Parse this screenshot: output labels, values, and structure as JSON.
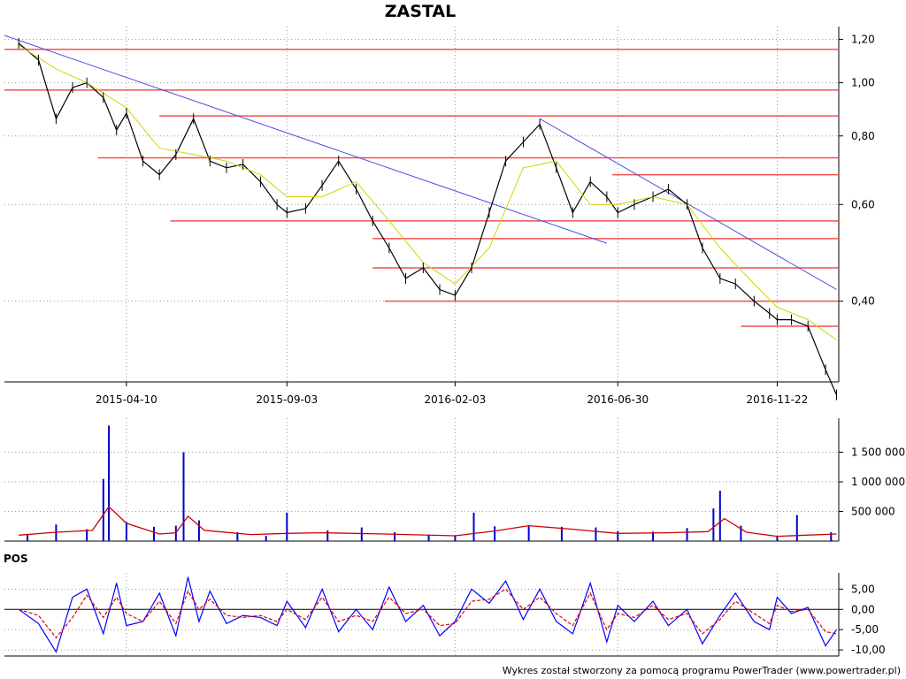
{
  "chart_data": [
    {
      "panel": "price",
      "type": "line",
      "title": "ZASTAL",
      "xlabel": "",
      "ylabel": "",
      "x_tick_labels": [
        "2015-04-10",
        "2015-09-03",
        "2016-02-03",
        "2016-06-30",
        "2016-11-22"
      ],
      "y_tick_labels": [
        "1,20",
        "1,00",
        "0,80",
        "0,60",
        "0,40"
      ],
      "y_ticks": [
        1.2,
        1.0,
        0.8,
        0.6,
        0.4
      ],
      "y_scale": "log",
      "ylim": [
        0.285,
        1.22
      ],
      "grid": true,
      "series": [
        {
          "role": "close",
          "color": "#000000",
          "x": [
            "2015-01-02",
            "2015-01-20",
            "2015-02-05",
            "2015-02-20",
            "2015-03-05",
            "2015-03-20",
            "2015-04-01",
            "2015-04-10",
            "2015-04-25",
            "2015-05-10",
            "2015-05-25",
            "2015-06-10",
            "2015-06-25",
            "2015-07-10",
            "2015-07-25",
            "2015-08-10",
            "2015-08-25",
            "2015-09-03",
            "2015-09-20",
            "2015-10-05",
            "2015-10-20",
            "2015-11-05",
            "2015-11-20",
            "2015-12-05",
            "2015-12-20",
            "2016-01-05",
            "2016-01-20",
            "2016-02-03",
            "2016-02-18",
            "2016-03-05",
            "2016-03-20",
            "2016-04-05",
            "2016-04-20",
            "2016-05-05",
            "2016-05-20",
            "2016-06-05",
            "2016-06-20",
            "2016-06-30",
            "2016-07-15",
            "2016-08-01",
            "2016-08-15",
            "2016-09-01",
            "2016-09-15",
            "2016-10-01",
            "2016-10-15",
            "2016-11-01",
            "2016-11-15",
            "2016-11-22",
            "2016-12-05",
            "2016-12-20",
            "2017-01-05",
            "2017-01-15"
          ],
          "values": [
            1.18,
            1.1,
            0.86,
            0.98,
            1.0,
            0.94,
            0.82,
            0.88,
            0.72,
            0.68,
            0.74,
            0.86,
            0.72,
            0.7,
            0.71,
            0.66,
            0.6,
            0.58,
            0.59,
            0.65,
            0.72,
            0.64,
            0.56,
            0.5,
            0.44,
            0.46,
            0.42,
            0.41,
            0.46,
            0.58,
            0.72,
            0.78,
            0.84,
            0.7,
            0.58,
            0.66,
            0.62,
            0.58,
            0.6,
            0.62,
            0.64,
            0.6,
            0.5,
            0.44,
            0.43,
            0.4,
            0.38,
            0.37,
            0.37,
            0.36,
            0.3,
            0.27
          ]
        },
        {
          "role": "moving-average",
          "color": "#d4d400",
          "x": [
            "2015-01-02",
            "2015-02-05",
            "2015-03-05",
            "2015-04-10",
            "2015-05-10",
            "2015-06-10",
            "2015-07-10",
            "2015-08-10",
            "2015-09-03",
            "2015-10-05",
            "2015-11-05",
            "2015-12-05",
            "2016-01-05",
            "2016-02-03",
            "2016-03-05",
            "2016-04-05",
            "2016-05-05",
            "2016-06-05",
            "2016-06-30",
            "2016-08-01",
            "2016-09-01",
            "2016-10-01",
            "2016-11-01",
            "2016-11-22",
            "2016-12-20",
            "2017-01-15"
          ],
          "values": [
            1.17,
            1.06,
            1.0,
            0.9,
            0.76,
            0.74,
            0.72,
            0.68,
            0.62,
            0.62,
            0.66,
            0.56,
            0.47,
            0.43,
            0.5,
            0.7,
            0.72,
            0.6,
            0.6,
            0.62,
            0.6,
            0.5,
            0.43,
            0.39,
            0.37,
            0.34
          ]
        }
      ],
      "support_resistance_levels": [
        1.15,
        0.97,
        0.87,
        0.73,
        0.56,
        0.52,
        0.46,
        0.4,
        0.36,
        0.68
      ],
      "trendlines": [
        {
          "from": [
            "2014-12-20",
            1.22
          ],
          "to": [
            "2016-06-20",
            0.51
          ]
        },
        {
          "from": [
            "2016-04-20",
            0.86
          ],
          "to": [
            "2017-01-15",
            0.42
          ]
        }
      ]
    },
    {
      "panel": "volume",
      "type": "bar",
      "y_tick_labels": [
        "1 500 000",
        "1 000 000",
        "500 000"
      ],
      "y_ticks": [
        1500000,
        1000000,
        500000
      ],
      "ylim": [
        0,
        2000000
      ],
      "grid": true,
      "series": [
        {
          "role": "volume",
          "color": "#0000cc",
          "x": [
            "2015-01-10",
            "2015-02-05",
            "2015-03-05",
            "2015-03-20",
            "2015-03-25",
            "2015-04-10",
            "2015-05-05",
            "2015-05-25",
            "2015-06-01",
            "2015-06-15",
            "2015-07-20",
            "2015-08-15",
            "2015-09-03",
            "2015-10-10",
            "2015-11-10",
            "2015-12-10",
            "2016-01-10",
            "2016-02-03",
            "2016-02-20",
            "2016-03-10",
            "2016-04-10",
            "2016-05-10",
            "2016-06-10",
            "2016-06-30",
            "2016-08-01",
            "2016-09-01",
            "2016-09-25",
            "2016-10-01",
            "2016-10-20",
            "2016-11-22",
            "2016-12-10",
            "2017-01-10"
          ],
          "values": [
            120000,
            280000,
            200000,
            1050000,
            1950000,
            320000,
            240000,
            260000,
            1500000,
            350000,
            150000,
            90000,
            480000,
            180000,
            230000,
            150000,
            110000,
            90000,
            480000,
            250000,
            260000,
            240000,
            230000,
            170000,
            160000,
            220000,
            550000,
            850000,
            260000,
            80000,
            440000,
            150000
          ]
        },
        {
          "role": "volume-average",
          "color": "#cc0000",
          "x": [
            "2015-01-02",
            "2015-02-05",
            "2015-03-10",
            "2015-03-25",
            "2015-04-10",
            "2015-05-10",
            "2015-05-25",
            "2015-06-05",
            "2015-06-20",
            "2015-08-01",
            "2015-09-03",
            "2015-10-05",
            "2015-12-01",
            "2016-02-03",
            "2016-03-10",
            "2016-04-10",
            "2016-05-20",
            "2016-06-30",
            "2016-08-15",
            "2016-09-20",
            "2016-10-05",
            "2016-10-25",
            "2016-11-22",
            "2017-01-15"
          ],
          "values": [
            100000,
            150000,
            180000,
            580000,
            300000,
            120000,
            140000,
            420000,
            180000,
            110000,
            130000,
            140000,
            120000,
            90000,
            170000,
            260000,
            200000,
            130000,
            140000,
            160000,
            380000,
            150000,
            80000,
            120000
          ]
        }
      ]
    },
    {
      "panel": "oscillator",
      "type": "line",
      "label": "POS",
      "y_tick_labels": [
        "5,00",
        "0,00",
        "-5,00",
        "-10,00"
      ],
      "y_ticks": [
        5.0,
        0.0,
        -5.0,
        -10.0
      ],
      "ylim": [
        -11.5,
        9.0
      ],
      "grid": true,
      "zero_line": true,
      "series": [
        {
          "role": "oscillator",
          "color": "#0000ff",
          "x": [
            "2015-01-02",
            "2015-01-20",
            "2015-02-05",
            "2015-02-20",
            "2015-03-05",
            "2015-03-20",
            "2015-04-01",
            "2015-04-10",
            "2015-04-25",
            "2015-05-10",
            "2015-05-25",
            "2015-06-05",
            "2015-06-15",
            "2015-06-25",
            "2015-07-10",
            "2015-07-25",
            "2015-08-10",
            "2015-08-25",
            "2015-09-03",
            "2015-09-20",
            "2015-10-05",
            "2015-10-20",
            "2015-11-05",
            "2015-11-20",
            "2015-12-05",
            "2015-12-20",
            "2016-01-05",
            "2016-01-20",
            "2016-02-03",
            "2016-02-18",
            "2016-03-05",
            "2016-03-20",
            "2016-04-05",
            "2016-04-20",
            "2016-05-05",
            "2016-05-20",
            "2016-06-05",
            "2016-06-20",
            "2016-06-30",
            "2016-07-15",
            "2016-08-01",
            "2016-08-15",
            "2016-09-01",
            "2016-09-15",
            "2016-10-01",
            "2016-10-15",
            "2016-11-01",
            "2016-11-15",
            "2016-11-22",
            "2016-12-05",
            "2016-12-20",
            "2017-01-05",
            "2017-01-15"
          ],
          "values": [
            0.0,
            -3.5,
            -10.5,
            3.0,
            5.0,
            -6.0,
            6.5,
            -4.0,
            -3.0,
            4.0,
            -6.5,
            8.0,
            -3.0,
            4.5,
            -3.5,
            -1.5,
            -2.0,
            -4.0,
            2.0,
            -4.5,
            5.0,
            -5.5,
            0.0,
            -5.0,
            5.5,
            -3.0,
            1.0,
            -6.5,
            -3.0,
            5.0,
            1.5,
            7.0,
            -2.5,
            5.0,
            -3.0,
            -6.0,
            6.5,
            -8.0,
            1.0,
            -3.0,
            2.0,
            -4.0,
            0.0,
            -8.5,
            -1.5,
            4.0,
            -3.0,
            -5.0,
            3.0,
            -1.0,
            0.5,
            -9.0,
            -5.0
          ]
        },
        {
          "role": "signal",
          "color": "#dd0000",
          "x": [
            "2015-01-02",
            "2015-01-20",
            "2015-02-05",
            "2015-02-20",
            "2015-03-05",
            "2015-03-20",
            "2015-04-01",
            "2015-04-10",
            "2015-04-25",
            "2015-05-10",
            "2015-05-25",
            "2015-06-05",
            "2015-06-15",
            "2015-06-25",
            "2015-07-10",
            "2015-07-25",
            "2015-08-10",
            "2015-08-25",
            "2015-09-03",
            "2015-09-20",
            "2015-10-05",
            "2015-10-20",
            "2015-11-05",
            "2015-11-20",
            "2015-12-05",
            "2015-12-20",
            "2016-01-05",
            "2016-01-20",
            "2016-02-03",
            "2016-02-18",
            "2016-03-05",
            "2016-03-20",
            "2016-04-05",
            "2016-04-20",
            "2016-05-05",
            "2016-05-20",
            "2016-06-05",
            "2016-06-20",
            "2016-06-30",
            "2016-07-15",
            "2016-08-01",
            "2016-08-15",
            "2016-09-01",
            "2016-09-15",
            "2016-10-01",
            "2016-10-15",
            "2016-11-01",
            "2016-11-15",
            "2016-11-22",
            "2016-12-05",
            "2016-12-20",
            "2017-01-05",
            "2017-01-15"
          ],
          "values": [
            0.0,
            -1.5,
            -7.0,
            -2.0,
            3.5,
            -2.0,
            3.0,
            -1.0,
            -3.0,
            2.0,
            -3.5,
            4.5,
            0.0,
            2.5,
            -1.5,
            -2.0,
            -1.5,
            -3.0,
            0.0,
            -2.5,
            3.0,
            -3.0,
            -1.5,
            -3.0,
            3.0,
            -1.0,
            0.0,
            -4.0,
            -3.5,
            2.0,
            2.5,
            5.0,
            0.0,
            3.0,
            -1.0,
            -4.0,
            4.0,
            -5.0,
            -1.0,
            -2.0,
            1.0,
            -2.5,
            -1.0,
            -6.0,
            -2.5,
            2.0,
            -1.0,
            -3.5,
            1.0,
            -0.5,
            0.0,
            -5.5,
            -6.0
          ]
        }
      ]
    }
  ],
  "footer": {
    "credit": "Wykres został stworzony za pomocą programu PowerTrader (www.powertrader.pl)"
  }
}
